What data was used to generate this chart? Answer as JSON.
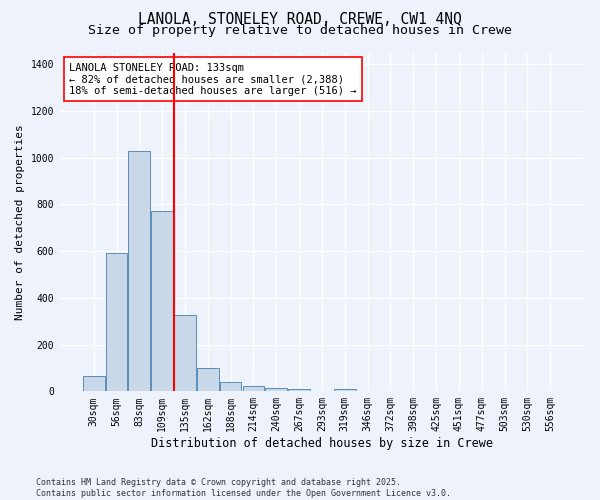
{
  "title1": "LANOLA, STONELEY ROAD, CREWE, CW1 4NQ",
  "title2": "Size of property relative to detached houses in Crewe",
  "xlabel": "Distribution of detached houses by size in Crewe",
  "ylabel": "Number of detached properties",
  "categories": [
    "30sqm",
    "56sqm",
    "83sqm",
    "109sqm",
    "135sqm",
    "162sqm",
    "188sqm",
    "214sqm",
    "240sqm",
    "267sqm",
    "293sqm",
    "319sqm",
    "346sqm",
    "372sqm",
    "398sqm",
    "425sqm",
    "451sqm",
    "477sqm",
    "503sqm",
    "530sqm",
    "556sqm"
  ],
  "values": [
    65,
    590,
    1030,
    770,
    325,
    100,
    38,
    22,
    15,
    12,
    0,
    12,
    0,
    0,
    0,
    0,
    0,
    0,
    0,
    0,
    0
  ],
  "bar_color": "#c8d8e8",
  "bar_edge_color": "#5b8db8",
  "redline_color": "red",
  "annotation_line1": "LANOLA STONELEY ROAD: 133sqm",
  "annotation_line2": "← 82% of detached houses are smaller (2,388)",
  "annotation_line3": "18% of semi-detached houses are larger (516) →",
  "annotation_box_color": "white",
  "annotation_box_edge": "red",
  "ylim": [
    0,
    1450
  ],
  "yticks": [
    0,
    200,
    400,
    600,
    800,
    1000,
    1200,
    1400
  ],
  "background_color": "#eef2fb",
  "grid_color": "white",
  "footer_text": "Contains HM Land Registry data © Crown copyright and database right 2025.\nContains public sector information licensed under the Open Government Licence v3.0.",
  "title1_fontsize": 10.5,
  "title2_fontsize": 9.5,
  "xlabel_fontsize": 8.5,
  "ylabel_fontsize": 8,
  "tick_fontsize": 7,
  "annotation_fontsize": 7.5,
  "footer_fontsize": 6
}
